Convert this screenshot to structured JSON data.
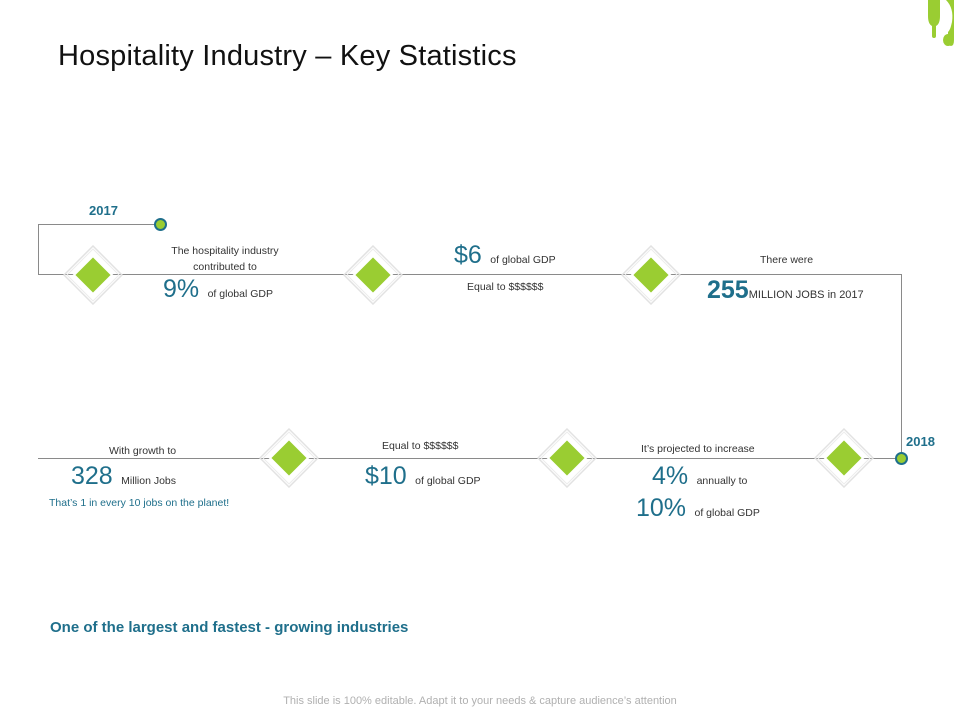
{
  "slide": {
    "title": "Hospitality Industry – Key Statistics",
    "tagline": "One of the largest and fastest - growing industries",
    "footer": "This slide is 100% editable. Adapt it to your needs & capture audience’s attention"
  },
  "timeline": {
    "start_year": "2017",
    "end_year": "2018"
  },
  "stats": {
    "s1": {
      "caption": "The hospitality industry contributed to",
      "value": "9%",
      "unit": "of global GDP"
    },
    "s2": {
      "value": "$6",
      "unit": "of global GDP",
      "note": "Equal to $$$$$$"
    },
    "s3": {
      "caption": "There were",
      "value": "255",
      "unit": "MILLION JOBS in 2017"
    },
    "s4": {
      "caption": "It’s projected to increase",
      "value": "4%",
      "unit": "annually to",
      "value2": "10%",
      "unit2": "of global GDP"
    },
    "s5": {
      "caption": "Equal to $$$$$$",
      "value": "$10",
      "unit": "of global GDP"
    },
    "s6": {
      "caption": "With growth to",
      "value": "328",
      "unit": "Million Jobs",
      "note": "That’s 1 in every 10 jobs on the planet!"
    }
  },
  "colors": {
    "accent_green": "#9acd32",
    "accent_teal": "#1f6f8b",
    "line_gray": "#8a8a8a"
  },
  "icons": [
    "cutlery-icon",
    "diamond-node-icon"
  ]
}
